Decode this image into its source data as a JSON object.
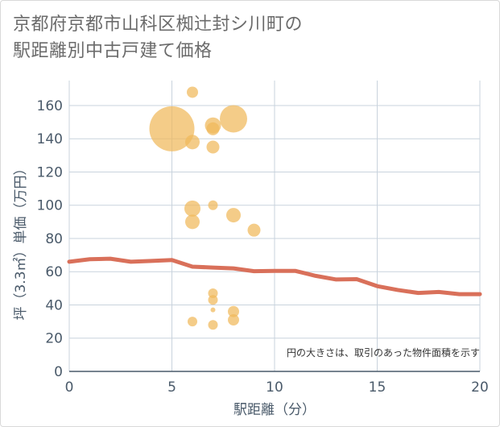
{
  "title_line1": "京都府京都市山科区椥辻封シ川町の",
  "title_line2": "駅距離別中古戸建て価格",
  "chart_data": {
    "type": "scatter",
    "title": "京都府京都市山科区椥辻封シ川町の駅距離別中古戸建て価格",
    "xlabel": "駅距離（分）",
    "ylabel": "坪（3.3㎡）単価（万円）",
    "xlim": [
      0,
      20
    ],
    "ylim": [
      0,
      175
    ],
    "xticks": [
      0,
      5,
      10,
      15,
      20
    ],
    "yticks": [
      0,
      20,
      40,
      60,
      80,
      100,
      120,
      140,
      160
    ],
    "note": "円の大きさは、取引のあった物件面積を示す",
    "colors": {
      "bubble": "#f0b85a",
      "line": "#d9705a",
      "grid": "#c9d3dd"
    },
    "bubbles": [
      {
        "x": 5,
        "y": 146,
        "size": 28
      },
      {
        "x": 6,
        "y": 168,
        "size": 7
      },
      {
        "x": 6,
        "y": 138,
        "size": 9
      },
      {
        "x": 6,
        "y": 98,
        "size": 10
      },
      {
        "x": 6,
        "y": 90,
        "size": 9
      },
      {
        "x": 6,
        "y": 30,
        "size": 6
      },
      {
        "x": 7,
        "y": 148,
        "size": 10
      },
      {
        "x": 7,
        "y": 146,
        "size": 8
      },
      {
        "x": 7,
        "y": 135,
        "size": 8
      },
      {
        "x": 7,
        "y": 100,
        "size": 6
      },
      {
        "x": 7,
        "y": 47,
        "size": 6
      },
      {
        "x": 7,
        "y": 43,
        "size": 6
      },
      {
        "x": 7,
        "y": 37,
        "size": 3
      },
      {
        "x": 7,
        "y": 28,
        "size": 6
      },
      {
        "x": 8,
        "y": 152,
        "size": 17
      },
      {
        "x": 8,
        "y": 94,
        "size": 9
      },
      {
        "x": 8,
        "y": 36,
        "size": 7
      },
      {
        "x": 8,
        "y": 31,
        "size": 7
      },
      {
        "x": 9,
        "y": 85,
        "size": 8
      }
    ],
    "trend": {
      "x": [
        0,
        1,
        2,
        3,
        4,
        5,
        6,
        7,
        8,
        9,
        10,
        11,
        12,
        13,
        14,
        15,
        16,
        17,
        18,
        19,
        20
      ],
      "y": [
        66,
        67.5,
        67.8,
        66,
        66.5,
        67,
        63,
        62.5,
        62,
        60.3,
        60.5,
        60.5,
        57.5,
        55.3,
        55.5,
        51.3,
        49,
        47.2,
        47.8,
        46.5,
        46.5
      ]
    }
  }
}
